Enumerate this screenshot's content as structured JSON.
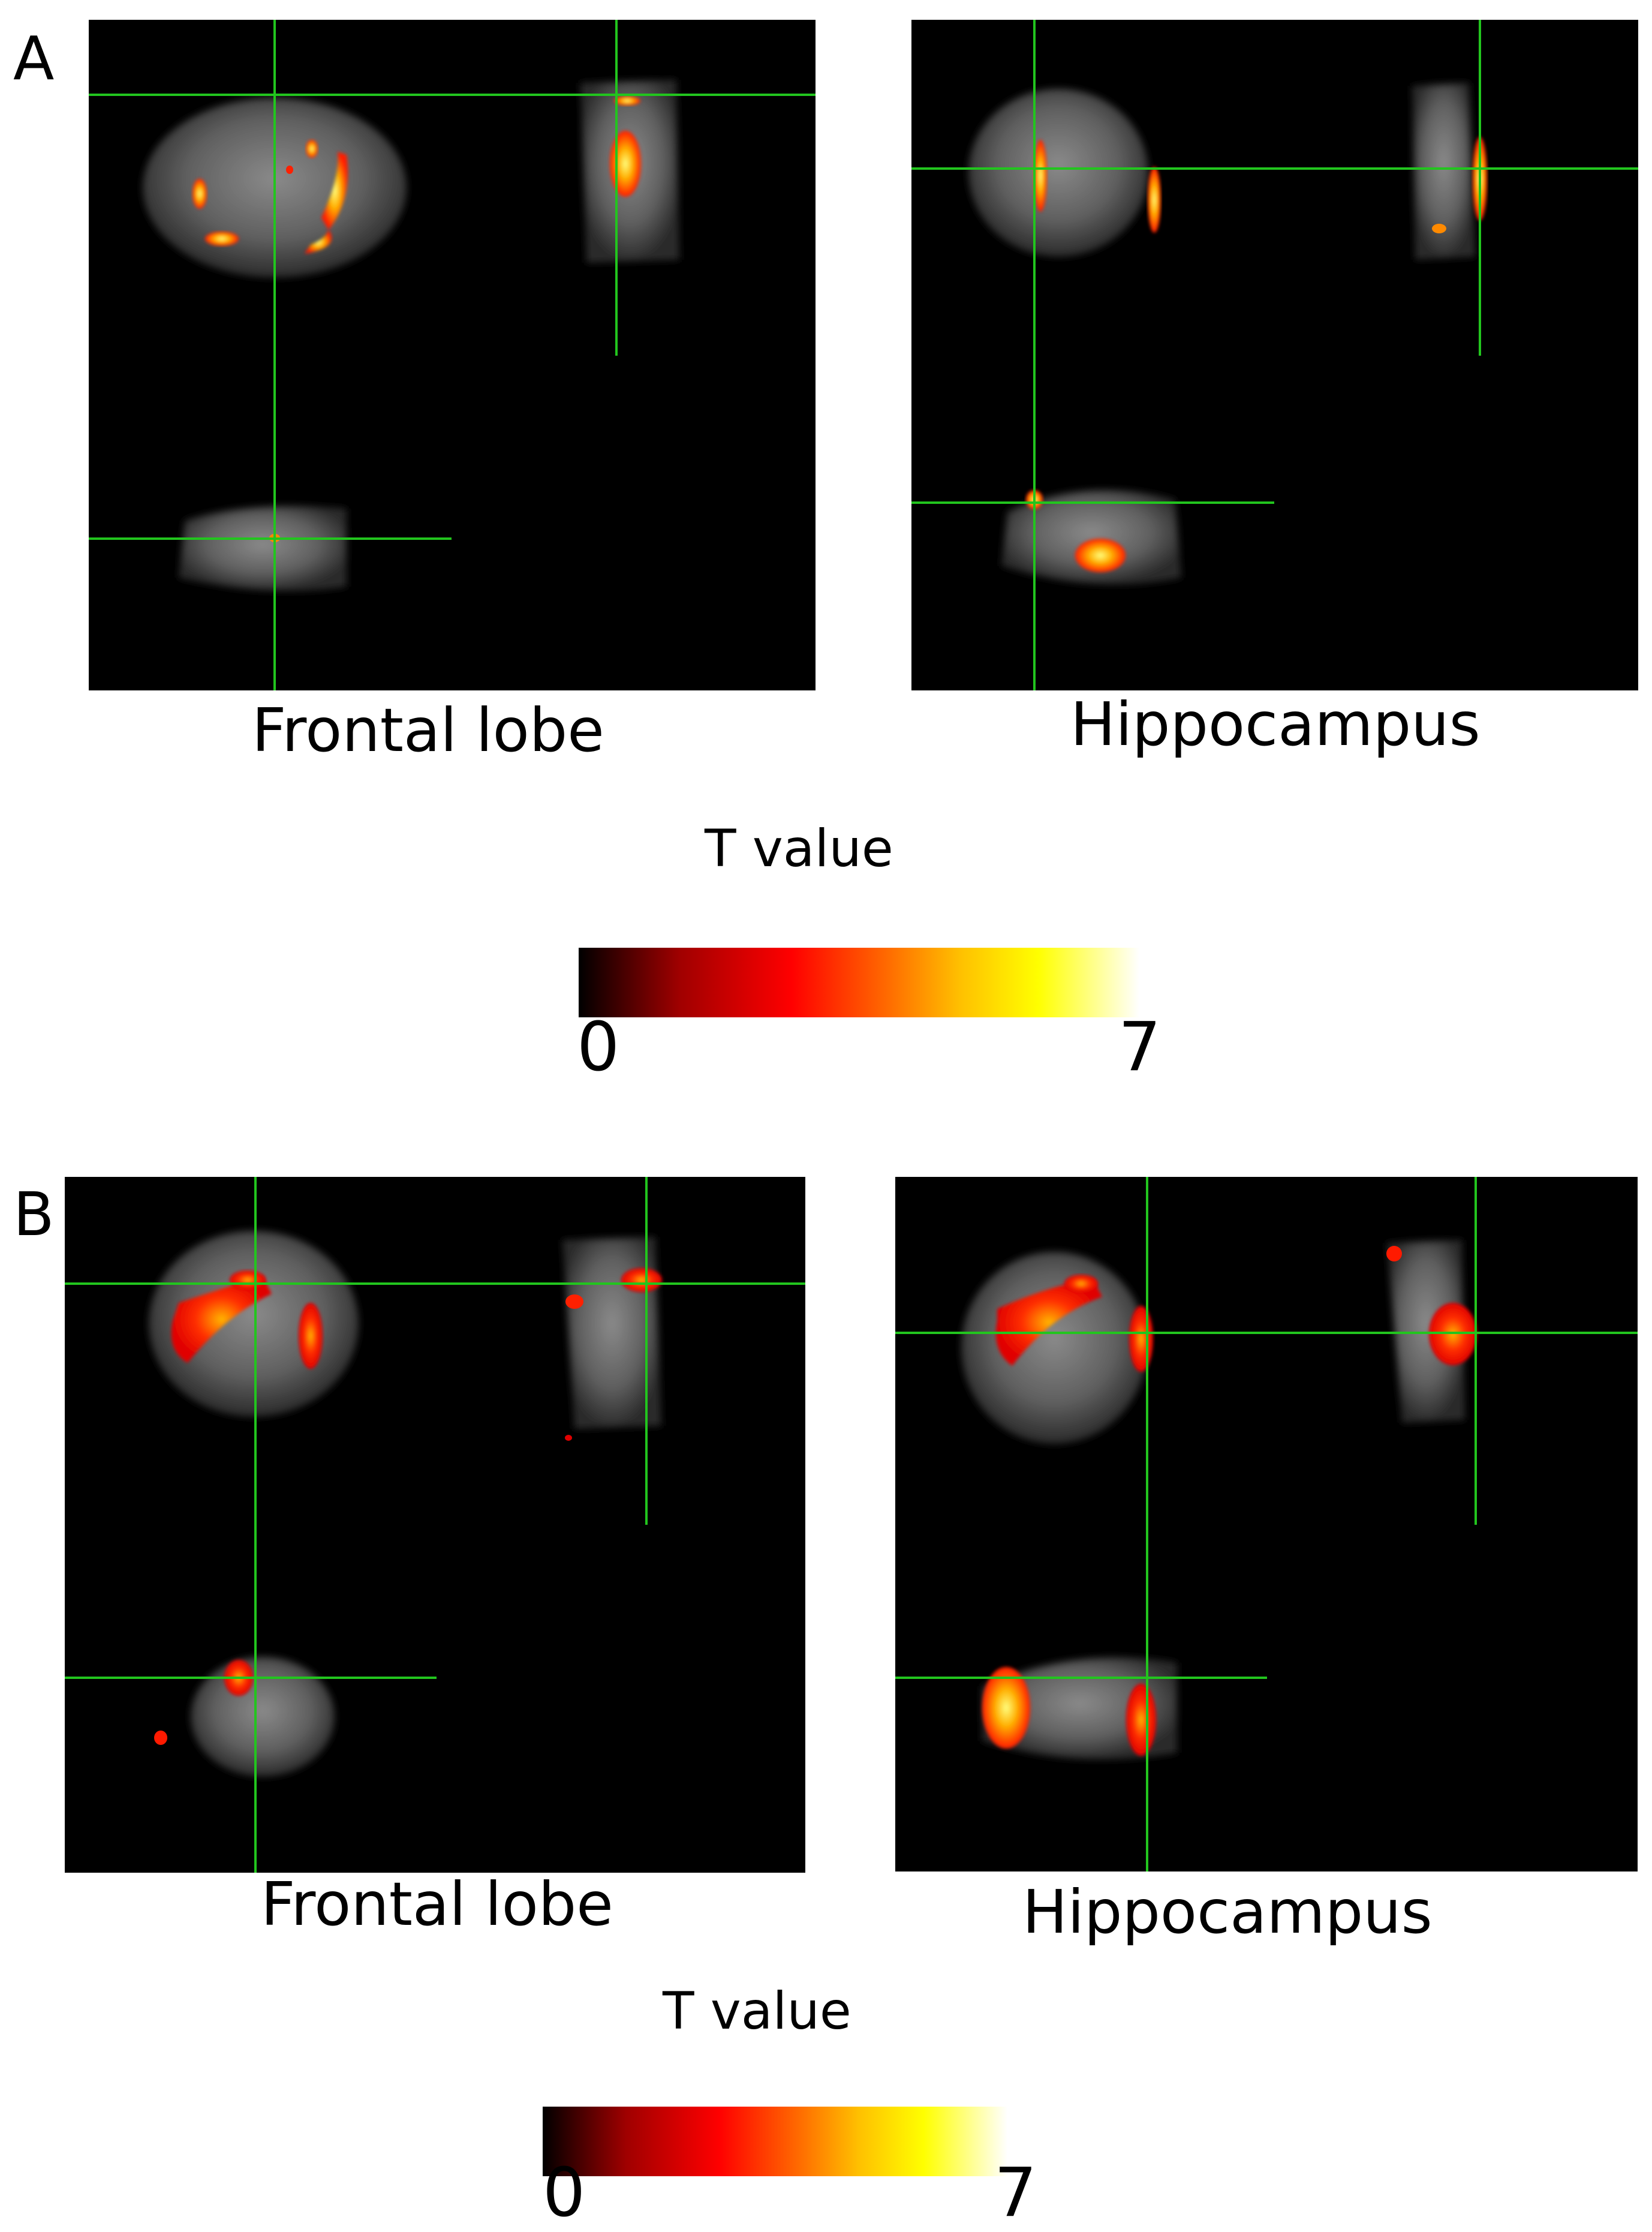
{
  "panels": [
    {
      "letter": "A",
      "images": [
        {
          "caption": "Frontal lobe"
        },
        {
          "caption": "Hippocampus"
        }
      ],
      "scale": {
        "label": "T value",
        "min": "0",
        "max": "7"
      }
    },
    {
      "letter": "B",
      "images": [
        {
          "caption": "Frontal lobe"
        },
        {
          "caption": "Hippocampus"
        }
      ],
      "scale": {
        "label": "T value",
        "min": "0",
        "max": "7"
      }
    }
  ],
  "colors": {
    "background": "#ffffff",
    "image_background": "#000000",
    "crosshair": "#22c51e",
    "colormap": [
      "#000000",
      "#ff0000",
      "#ff9900",
      "#ffff00",
      "#ffffff"
    ]
  }
}
